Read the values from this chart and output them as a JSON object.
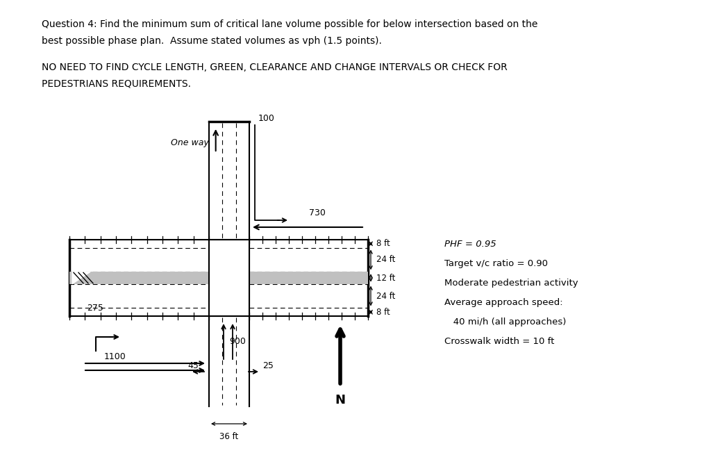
{
  "title_line1": "Question 4: Find the minimum sum of critical lane volume possible for below intersection based on the",
  "title_line2": "best possible phase plan.  Assume stated volumes as vph (1.5 points).",
  "subtitle_line1": "NO NEED TO FIND CYCLE LENGTH, GREEN, CLEARANCE AND CHANGE INTERVALS OR CHECK FOR",
  "subtitle_line2": "PEDESTRIANS REQUIREMENTS.",
  "background_color": "#ffffff",
  "text_color": "#000000",
  "phf_text": "PHF = 0.95",
  "vc_text": "Target v/c ratio = 0.90",
  "ped_text": "Moderate pedestrian activity",
  "speed_text": "Average approach speed:",
  "speed_text2": "   40 mi/h (all approaches)",
  "crosswalk_text": "Crosswalk width = 10 ft",
  "dim_8ft_top": "8 ft",
  "dim_24ft_top": "24 ft",
  "dim_12ft": "12 ft",
  "dim_24ft_bot": "24 ft",
  "dim_8ft_bot": "8 ft",
  "dim_36ft": "36 ft",
  "north_label": "N",
  "vol_100": "100",
  "vol_730": "730",
  "vol_275": "275",
  "vol_1100": "1100",
  "vol_900": "900",
  "vol_45": "45",
  "vol_25": "25",
  "one_way": "One way"
}
